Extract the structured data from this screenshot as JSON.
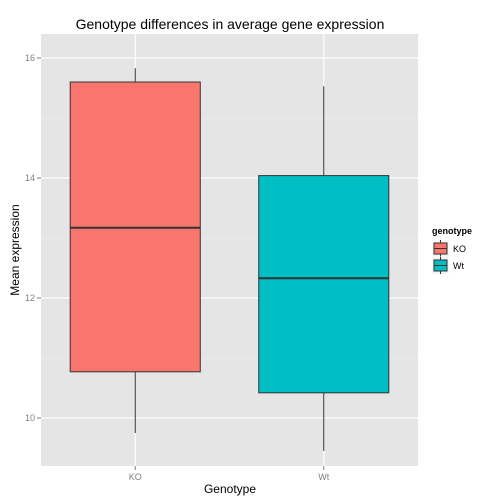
{
  "chart_data": {
    "type": "box",
    "title": "Genotype differences in average gene expression",
    "xlabel": "Genotype",
    "ylabel": "Mean expression",
    "ylim": [
      9.2,
      16.4
    ],
    "yticks": [
      10,
      12,
      14,
      16
    ],
    "grid": true,
    "legend": {
      "title": "genotype",
      "placement": "right",
      "entries": [
        "KO",
        "Wt"
      ]
    },
    "categories": [
      "KO",
      "Wt"
    ],
    "boxes": [
      {
        "category": "KO",
        "whisker_low": 9.75,
        "q1": 10.77,
        "median": 13.17,
        "q3": 15.6,
        "whisker_high": 15.83,
        "color": "#F8766D"
      },
      {
        "category": "Wt",
        "whisker_low": 9.45,
        "q1": 10.42,
        "median": 12.33,
        "q3": 14.04,
        "whisker_high": 15.53,
        "color": "#00BFC4"
      }
    ]
  }
}
